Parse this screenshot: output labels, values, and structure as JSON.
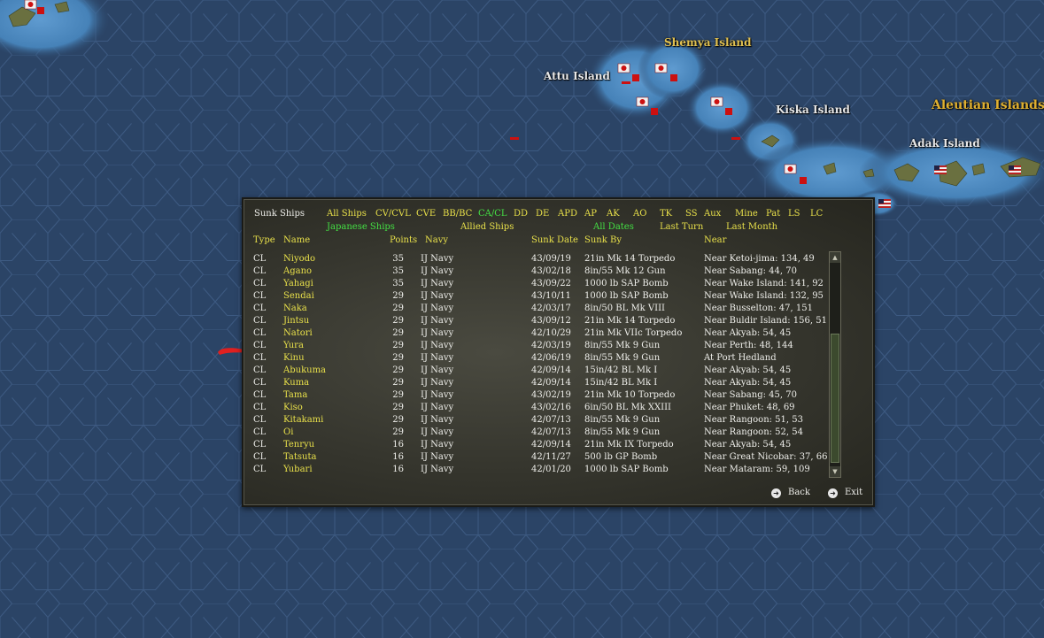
{
  "map": {
    "labels": {
      "shemya": "Shemya Island",
      "attu": "Attu Island",
      "kiska": "Kiska Island",
      "aleutian": "Aleutian Islands",
      "adak": "Adak Island"
    },
    "colors": {
      "sea": "#2b4466",
      "hex_line": "#3d5a82",
      "shallow": "#4a86bc",
      "land": "#5c6a3a"
    }
  },
  "panel": {
    "title": "Sunk Ships",
    "filters_row1": [
      {
        "label": "All Ships",
        "active": false
      },
      {
        "label": "CV/CVL",
        "active": false
      },
      {
        "label": "CVE",
        "active": false
      },
      {
        "label": "BB/BC",
        "active": false
      },
      {
        "label": "CA/CL",
        "active": true
      },
      {
        "label": "DD",
        "active": false
      },
      {
        "label": "DE",
        "active": false
      },
      {
        "label": "APD",
        "active": false
      },
      {
        "label": "AP",
        "active": false
      },
      {
        "label": "AK",
        "active": false
      },
      {
        "label": "AO",
        "active": false
      },
      {
        "label": "TK",
        "active": false
      },
      {
        "label": "SS",
        "active": false
      },
      {
        "label": "Aux",
        "active": false
      },
      {
        "label": "Mine",
        "active": false
      },
      {
        "label": "Pat",
        "active": false
      },
      {
        "label": "LS",
        "active": false
      },
      {
        "label": "LC",
        "active": false
      }
    ],
    "filters_row2": [
      {
        "label": "Japanese Ships",
        "active": true
      },
      {
        "label": "Allied Ships",
        "active": false
      },
      {
        "label": "All Dates",
        "active": true
      },
      {
        "label": "Last Turn",
        "active": false
      },
      {
        "label": "Last Month",
        "active": false
      }
    ],
    "headers": {
      "type": "Type",
      "name": "Name",
      "points": "Points",
      "navy": "Navy",
      "sunk_date": "Sunk Date",
      "sunk_by": "Sunk By",
      "near": "Near"
    },
    "rows": [
      {
        "type": "CL",
        "name": "Niyodo",
        "points": "35",
        "navy": "IJ Navy",
        "date": "43/09/19",
        "by": "21in Mk 14 Torpedo",
        "near": "Near Ketoi-jima: 134, 49"
      },
      {
        "type": "CL",
        "name": "Agano",
        "points": "35",
        "navy": "IJ Navy",
        "date": "43/02/18",
        "by": "8in/55 Mk 12 Gun",
        "near": "Near Sabang: 44, 70"
      },
      {
        "type": "CL",
        "name": "Yahagi",
        "points": "35",
        "navy": "IJ Navy",
        "date": "43/09/22",
        "by": "1000 lb SAP Bomb",
        "near": "Near Wake Island: 141, 92"
      },
      {
        "type": "CL",
        "name": "Sendai",
        "points": "29",
        "navy": "IJ Navy",
        "date": "43/10/11",
        "by": "1000 lb SAP Bomb",
        "near": "Near Wake Island: 132, 95"
      },
      {
        "type": "CL",
        "name": "Naka",
        "points": "29",
        "navy": "IJ Navy",
        "date": "42/03/17",
        "by": "8in/50 BL Mk VIII",
        "near": "Near Busselton: 47, 151"
      },
      {
        "type": "CL",
        "name": "Jintsu",
        "points": "29",
        "navy": "IJ Navy",
        "date": "43/09/12",
        "by": "21in Mk 14 Torpedo",
        "near": "Near Buldir Island: 156, 51"
      },
      {
        "type": "CL",
        "name": "Natori",
        "points": "29",
        "navy": "IJ Navy",
        "date": "42/10/29",
        "by": "21in Mk VIIc Torpedo",
        "near": "Near Akyab: 54, 45"
      },
      {
        "type": "CL",
        "name": "Yura",
        "points": "29",
        "navy": "IJ Navy",
        "date": "42/03/19",
        "by": "8in/55 Mk 9 Gun",
        "near": "Near Perth: 48, 144"
      },
      {
        "type": "CL",
        "name": "Kinu",
        "points": "29",
        "navy": "IJ Navy",
        "date": "42/06/19",
        "by": "8in/55 Mk 9 Gun",
        "near": "At Port Hedland"
      },
      {
        "type": "CL",
        "name": "Abukuma",
        "points": "29",
        "navy": "IJ Navy",
        "date": "42/09/14",
        "by": "15in/42 BL Mk I",
        "near": "Near Akyab: 54, 45"
      },
      {
        "type": "CL",
        "name": "Kuma",
        "points": "29",
        "navy": "IJ Navy",
        "date": "42/09/14",
        "by": "15in/42 BL Mk I",
        "near": "Near Akyab: 54, 45"
      },
      {
        "type": "CL",
        "name": "Tama",
        "points": "29",
        "navy": "IJ Navy",
        "date": "43/02/19",
        "by": "21in Mk 10 Torpedo",
        "near": "Near Sabang: 45, 70"
      },
      {
        "type": "CL",
        "name": "Kiso",
        "points": "29",
        "navy": "IJ Navy",
        "date": "43/02/16",
        "by": "6in/50 BL Mk XXIII",
        "near": "Near Phuket: 48, 69"
      },
      {
        "type": "CL",
        "name": "Kitakami",
        "points": "29",
        "navy": "IJ Navy",
        "date": "42/07/13",
        "by": "8in/55 Mk 9 Gun",
        "near": "Near Rangoon: 51, 53"
      },
      {
        "type": "CL",
        "name": "Oi",
        "points": "29",
        "navy": "IJ Navy",
        "date": "42/07/13",
        "by": "8in/55 Mk 9 Gun",
        "near": "Near Rangoon: 52, 54"
      },
      {
        "type": "CL",
        "name": "Tenryu",
        "points": "16",
        "navy": "IJ Navy",
        "date": "42/09/14",
        "by": "21in Mk IX Torpedo",
        "near": "Near Akyab: 54, 45"
      },
      {
        "type": "CL",
        "name": "Tatsuta",
        "points": "16",
        "navy": "IJ Navy",
        "date": "42/11/27",
        "by": "500 lb GP Bomb",
        "near": "Near Great Nicobar: 37, 66"
      },
      {
        "type": "CL",
        "name": "Yubari",
        "points": "16",
        "navy": "IJ Navy",
        "date": "42/01/20",
        "by": "1000 lb SAP Bomb",
        "near": "Near Mataram: 59, 109"
      }
    ],
    "buttons": {
      "back": "Back",
      "exit": "Exit"
    },
    "icons": {
      "up": "scroll-up-arrow-icon",
      "down": "scroll-down-arrow-icon",
      "back": "back-arrow-icon",
      "exit": "exit-arrow-icon"
    }
  }
}
